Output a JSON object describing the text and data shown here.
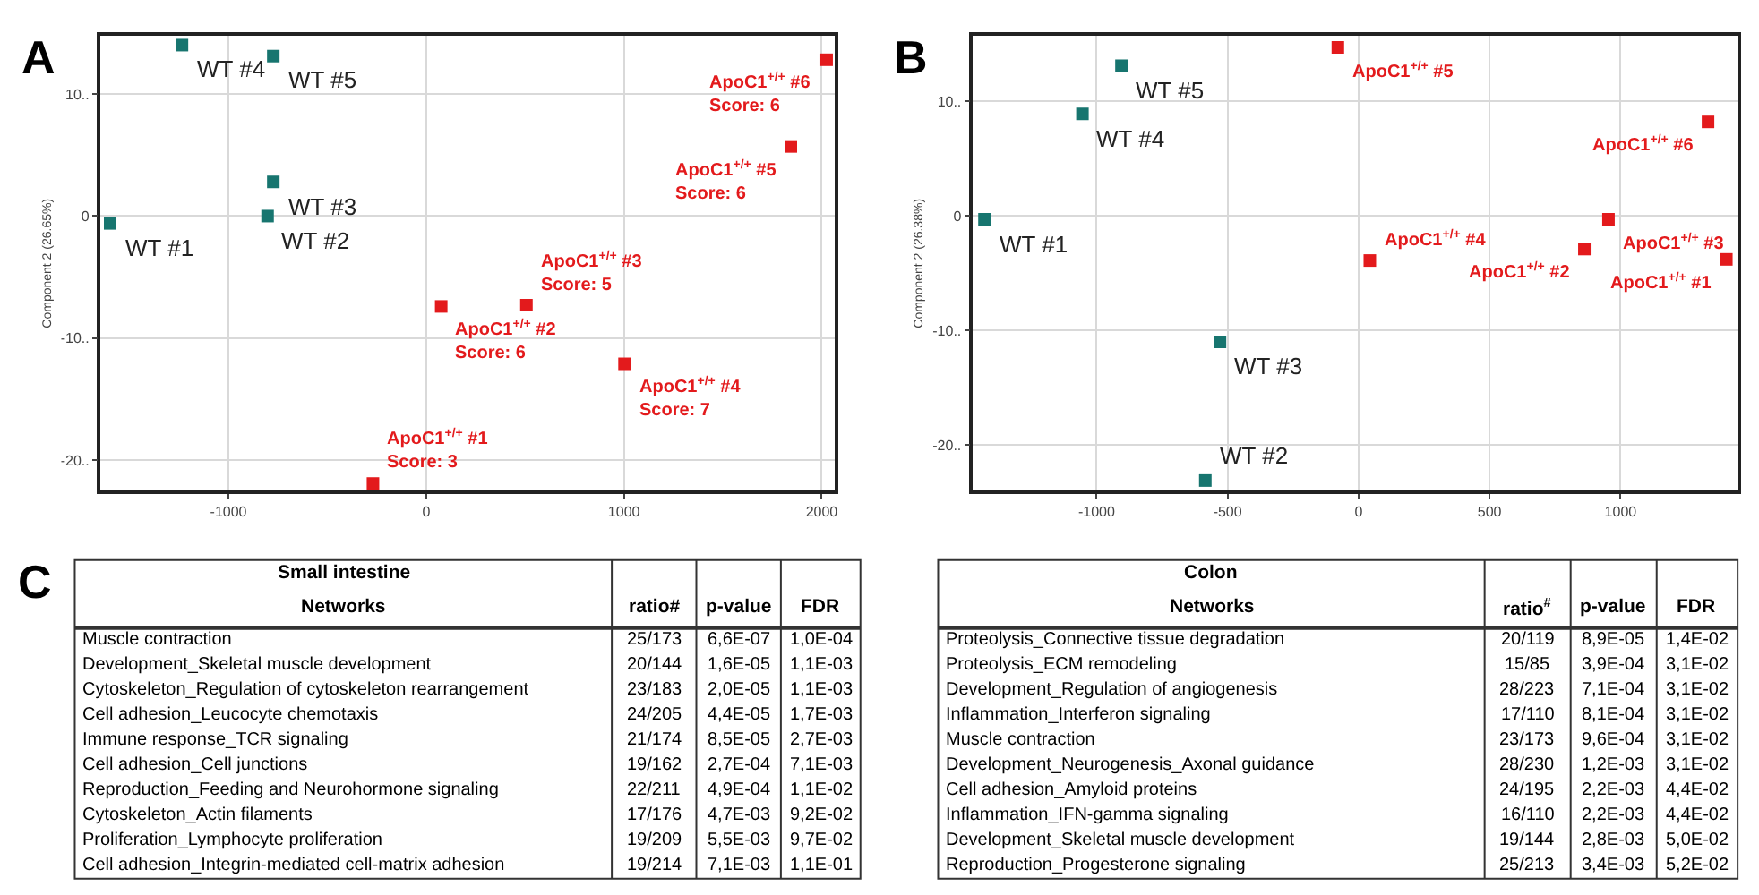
{
  "chart_data": [
    {
      "type": "scatter",
      "title": "A",
      "ylabel": "Component 2 (26.65%)",
      "xlim": [
        -1646,
        2065
      ],
      "ylim": [
        -22.5,
        14.75
      ],
      "xticks": [
        -1000,
        0,
        1000,
        2000
      ],
      "yticks": [
        {
          "value": -20,
          "label": "-20.."
        },
        {
          "value": -10,
          "label": "-10.."
        },
        0,
        {
          "value": 10,
          "label": "10.."
        }
      ],
      "grid": true,
      "marker": "square",
      "series": [
        {
          "color": "#17756f",
          "x": [
            -1598,
            -802,
            -773,
            -1235,
            -773
          ],
          "values": [
            -0.6,
            0.0,
            2.8,
            14.0,
            13.1
          ]
        },
        {
          "color": "#e31a1c",
          "x": [
            -269,
            76,
            507,
            1003,
            1844,
            2025
          ],
          "values": [
            -21.9,
            -7.4,
            -7.3,
            -12.1,
            5.7,
            12.8
          ]
        }
      ],
      "annotations": [
        {
          "text": "WT #1",
          "x": -1598,
          "y": -0.6
        },
        {
          "text": "WT #2",
          "x": -802,
          "y": 0.0
        },
        {
          "text": "WT #3",
          "x": -773,
          "y": 2.8
        },
        {
          "text": "WT #4",
          "x": -1235,
          "y": 14.0
        },
        {
          "text": "WT #5",
          "x": -773,
          "y": 13.1
        },
        {
          "text": "ApoC1$^{+/+}$ #1\nScore: 3",
          "x": -269,
          "y": -21.9
        },
        {
          "text": "ApoC1$^{+/+}$ #2\nScore: 6",
          "x": 76,
          "y": -7.4
        },
        {
          "text": "ApoC1$^{+/+}$ #3\nScore: 5",
          "x": 507,
          "y": -7.3
        },
        {
          "text": "ApoC1$^{+/+}$ #4\nScore: 7",
          "x": 1003,
          "y": -12.1
        },
        {
          "text": "ApoC1$^{+/+}$ #5\nScore: 6",
          "x": 1844,
          "y": 5.7
        },
        {
          "text": "ApoC1$^{+/+}$ #6\nScore: 6",
          "x": 2025,
          "y": 12.8
        }
      ]
    },
    {
      "type": "scatter",
      "title": "B",
      "ylabel": "Component 2 (26.38%)",
      "xlim": [
        -1473,
        1447
      ],
      "ylim": [
        -24.0,
        15.7
      ],
      "xticks": [
        -1000,
        -500,
        0,
        500,
        1000
      ],
      "yticks": [
        {
          "value": -20,
          "label": "-20.."
        },
        {
          "value": -10,
          "label": "-10.."
        },
        0,
        {
          "value": 10,
          "label": "10.."
        }
      ],
      "grid": true,
      "marker": "square",
      "series": [
        {
          "color": "#17756f",
          "x": [
            -1428,
            -585,
            -529,
            -1054,
            -905
          ],
          "values": [
            -0.3,
            -23.1,
            -11.0,
            8.9,
            13.1
          ]
        },
        {
          "color": "#e31a1c",
          "x": [
            1404,
            862,
            954,
            43,
            -79,
            1334
          ],
          "values": [
            -3.8,
            -2.9,
            -0.3,
            -3.9,
            14.7,
            8.2
          ]
        }
      ],
      "annotations": [
        {
          "text": "WT #1",
          "x": -1428,
          "y": -0.3
        },
        {
          "text": "WT #2",
          "x": -585,
          "y": -23.1
        },
        {
          "text": "WT #3",
          "x": -529,
          "y": -11.0
        },
        {
          "text": "WT #4",
          "x": -1054,
          "y": 8.9
        },
        {
          "text": "WT #5",
          "x": -905,
          "y": 13.1
        },
        {
          "text": "ApoC1$^{+/+}$ #1",
          "x": 1404,
          "y": -3.8
        },
        {
          "text": "ApoC1$^{+/+}$ #2",
          "x": 862,
          "y": -2.9
        },
        {
          "text": "ApoC1$^{+/+}$ #3",
          "x": 954,
          "y": -0.3
        },
        {
          "text": "ApoC1$^{+/+}$ #4",
          "x": 43,
          "y": -3.9
        },
        {
          "text": "ApoC1$^{+/+}$ #5",
          "x": -79,
          "y": 14.7
        },
        {
          "text": "ApoC1$^{+/+}$ #6",
          "x": 1334,
          "y": 8.2
        }
      ]
    },
    {
      "type": "other",
      "title": "C",
      "subtitle": "Small intestine",
      "categories": [
        "Networks",
        "ratio#",
        "p-value",
        "FDR"
      ],
      "annotations": [
        "Muscle contraction",
        "25/173",
        "6,6E-07",
        "1,0E-04",
        "Development_Skeletal muscle development",
        "20/144",
        "1,6E-05",
        "1,1E-03",
        "Cytoskeleton_Regulation of cytoskeleton rearrangement",
        "23/183",
        "2,0E-05",
        "1,1E-03",
        "Cell adhesion_Leucocyte chemotaxis",
        "24/205",
        "4,4E-05",
        "1,7E-03",
        "Immune response_TCR signaling",
        "21/174",
        "8,5E-05",
        "2,7E-03",
        "Cell adhesion_Cell junctions",
        "19/162",
        "2,7E-04",
        "7,1E-03",
        "Reproduction_Feeding and Neurohormone signaling",
        "22/211",
        "4,9E-04",
        "1,1E-02",
        "Cytoskeleton_Actin filaments",
        "17/176",
        "4,7E-03",
        "9,2E-02",
        "Proliferation_Lymphocyte proliferation",
        "19/209",
        "5,5E-03",
        "9,7E-02",
        "Cell adhesion_Integrin-mediated cell-matrix adhesion",
        "19/214",
        "7,1E-03",
        "1,1E-01"
      ]
    },
    {
      "type": "other",
      "subtitle": "Colon",
      "categories": [
        "Networks",
        "ratio$^{#}$",
        "p-value",
        "FDR"
      ],
      "annotations": [
        "Proteolysis_Connective tissue degradation",
        "20/119",
        "8,9E-05",
        "1,4E-02",
        "Proteolysis_ECM remodeling",
        "15/85",
        "3,9E-04",
        "3,1E-02",
        "Development_Regulation of angiogenesis",
        "28/223",
        "7,1E-04",
        "3,1E-02",
        "Inflammation_Interferon signaling",
        "17/110",
        "8,1E-04",
        "3,1E-02",
        "Muscle contraction",
        "23/173",
        "9,6E-04",
        "3,1E-02",
        "Development_Neurogenesis_Axonal guidance",
        "28/230",
        "1,2E-03",
        "3,1E-02",
        "Cell adhesion_Amyloid proteins",
        "24/195",
        "2,2E-03",
        "4,4E-02",
        "Inflammation_IFN-gamma signaling",
        "16/110",
        "2,2E-03",
        "4,4E-02",
        "Development_Skeletal muscle development",
        "19/144",
        "2,8E-03",
        "5,0E-02",
        "Reproduction_Progesterone signaling",
        "25/213",
        "3,4E-03",
        "5,2E-02"
      ]
    }
  ]
}
